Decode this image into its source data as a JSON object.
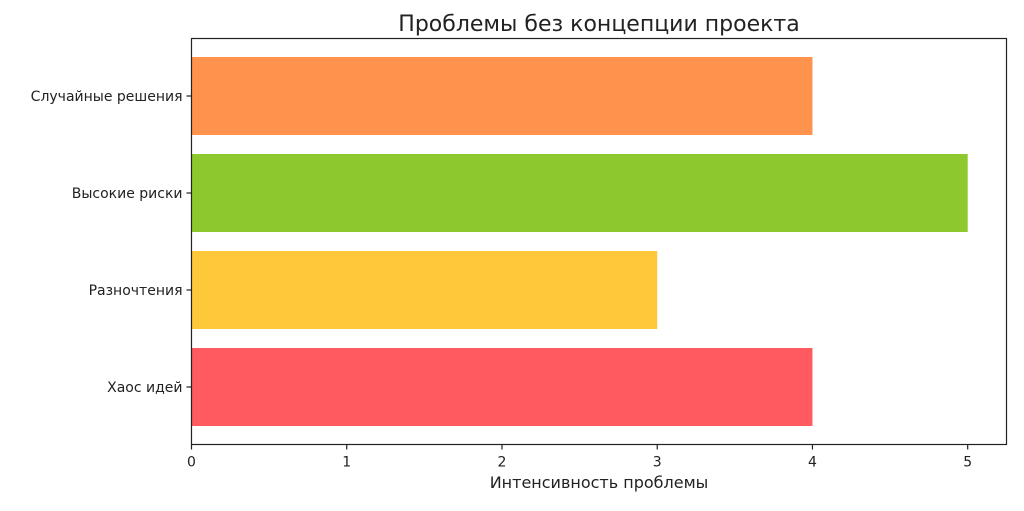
{
  "chart_data": {
    "type": "bar",
    "orientation": "horizontal",
    "title": "Проблемы без концепции проекта",
    "xlabel": "Интенсивность проблемы",
    "ylabel": "",
    "categories": [
      "Хаос идей",
      "Разночтения",
      "Высокие риски",
      "Случайные решения"
    ],
    "values": [
      4,
      3,
      5,
      4
    ],
    "colors": [
      "#ff5a60",
      "#ffc83a",
      "#8dc92c",
      "#ff934d"
    ],
    "xlim": [
      0,
      5.25
    ],
    "xticks": [
      0,
      1,
      2,
      3,
      4,
      5
    ],
    "grid": false,
    "legend": "none"
  }
}
